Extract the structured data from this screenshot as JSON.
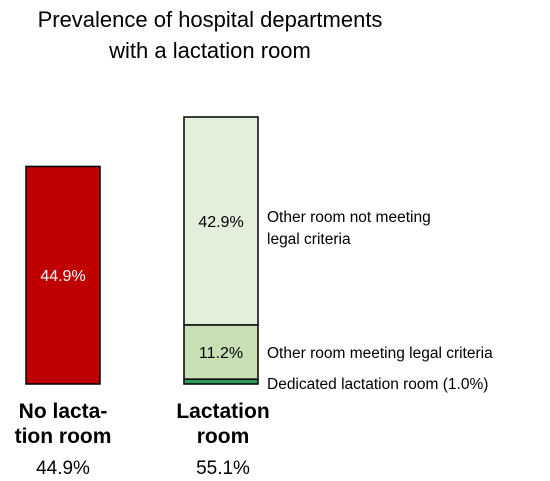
{
  "chart_data": {
    "type": "bar",
    "title_lines": [
      "Prevalence of hospital departments",
      "with a lactation room"
    ],
    "ylim": [
      0,
      56
    ],
    "bars": [
      {
        "category_lines": [
          "No lacta-",
          "tion room"
        ],
        "total_label": "44.9%",
        "segments": [
          {
            "value": 44.9,
            "value_label": "44.9%",
            "color": "#c00000",
            "label_color": "#ffffff",
            "label": ""
          }
        ]
      },
      {
        "category_lines": [
          "Lactation",
          "room"
        ],
        "total_label": "55.1%",
        "segments": [
          {
            "value": 1.0,
            "value_label": "",
            "color": "#2e9e5a",
            "label_color": "#000000",
            "label": "Dedicated lactation room (1.0%)"
          },
          {
            "value": 11.2,
            "value_label": "11.2%",
            "color": "#c6e0b4",
            "label_color": "#000000",
            "label": "Other room meeting legal criteria"
          },
          {
            "value": 42.9,
            "value_label": "42.9%",
            "color": "#e2efda",
            "label_color": "#000000",
            "label_lines": [
              "Other room not meeting",
              "legal criteria"
            ]
          }
        ]
      }
    ],
    "colors": {
      "edge": "#000000",
      "text": "#000000"
    }
  }
}
